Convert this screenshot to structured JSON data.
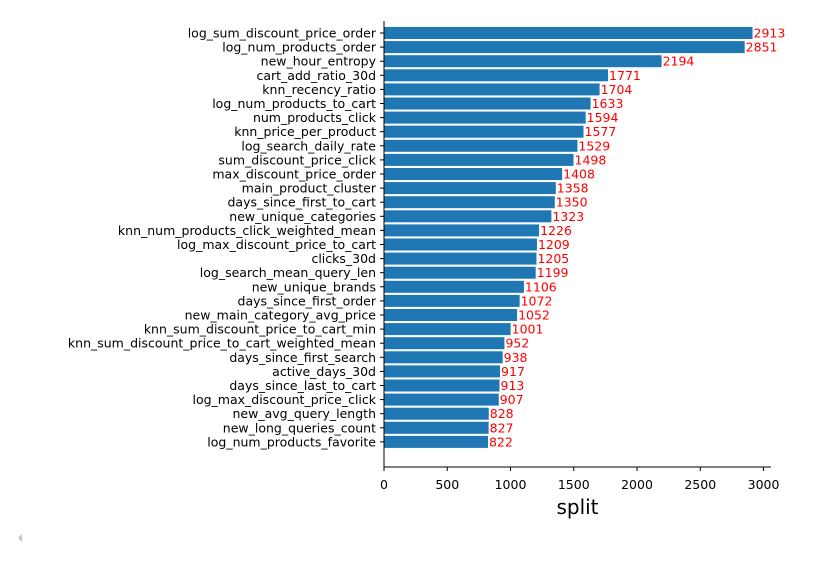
{
  "chart_data": {
    "type": "bar",
    "orientation": "horizontal",
    "categories": [
      "log_sum_discount_price_order",
      "log_num_products_order",
      "new_hour_entropy",
      "cart_add_ratio_30d",
      "knn_recency_ratio",
      "log_num_products_to_cart",
      "num_products_click",
      "knn_price_per_product",
      "log_search_daily_rate",
      "sum_discount_price_click",
      "max_discount_price_order",
      "main_product_cluster",
      "days_since_first_to_cart",
      "new_unique_categories",
      "knn_num_products_click_weighted_mean",
      "log_max_discount_price_to_cart",
      "clicks_30d",
      "log_search_mean_query_len",
      "new_unique_brands",
      "days_since_first_order",
      "new_main_category_avg_price",
      "knn_sum_discount_price_to_cart_min",
      "knn_sum_discount_price_to_cart_weighted_mean",
      "days_since_first_search",
      "active_days_30d",
      "days_since_last_to_cart",
      "log_max_discount_price_click",
      "new_avg_query_length",
      "new_long_queries_count",
      "log_num_products_favorite"
    ],
    "values": [
      2913,
      2851,
      2194,
      1771,
      1704,
      1633,
      1594,
      1577,
      1529,
      1498,
      1408,
      1358,
      1350,
      1323,
      1226,
      1209,
      1205,
      1199,
      1106,
      1072,
      1052,
      1001,
      952,
      938,
      917,
      913,
      907,
      828,
      827,
      822
    ],
    "data_labels": [
      "2913",
      "2851",
      "2194",
      "1771",
      "1704",
      "1633",
      "1594",
      "1577",
      "1529",
      "1498",
      "1408",
      "1358",
      "1350",
      "1323",
      "1226",
      "1209",
      "1205",
      "1199",
      "1106",
      "1072",
      "1052",
      "1001",
      "952",
      "938",
      "917",
      "913",
      "907",
      "828",
      "827",
      "822"
    ],
    "xlabel": "split",
    "ylabel": "",
    "title": "",
    "xlim": [
      0,
      3059
    ],
    "xticks": [
      0,
      500,
      1000,
      1500,
      2000,
      2500,
      3000
    ],
    "xtick_labels": [
      "0",
      "500",
      "1000",
      "1500",
      "2000",
      "2500",
      "3000"
    ],
    "grid": false,
    "legend": "none",
    "colors": {
      "bar": "#1f77b4",
      "data_label": "#ff0000",
      "axis": "#000000",
      "corner_arrow": "#c8c8c8"
    }
  }
}
